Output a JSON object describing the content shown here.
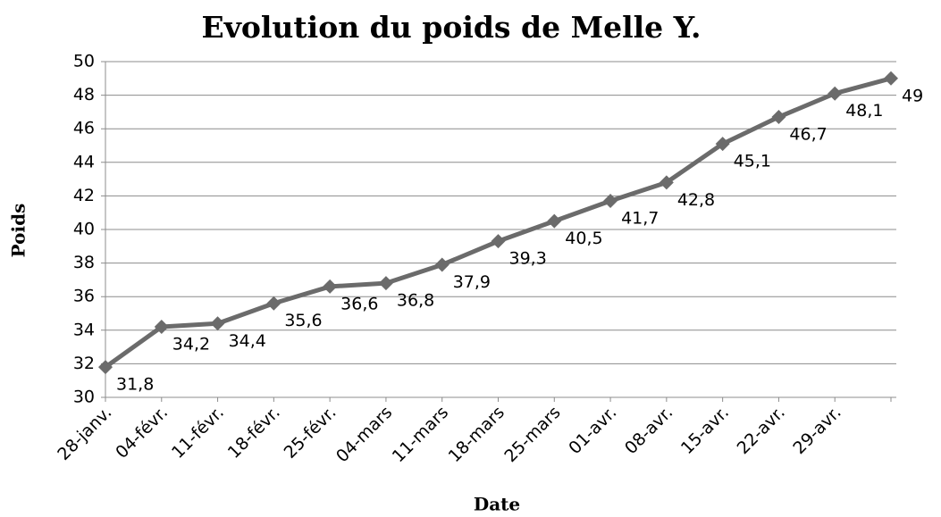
{
  "chart_data": {
    "type": "line",
    "title": "Evolution du poids de Melle Y.",
    "x_label": "Date",
    "y_label": "Poids",
    "categories": [
      "28-janv.",
      "04-févr.",
      "11-févr.",
      "18-févr.",
      "25-févr.",
      "04-mars",
      "11-mars",
      "18-mars",
      "25-mars",
      "01-avr.",
      "08-avr.",
      "15-avr.",
      "22-avr.",
      "29-avr.",
      null
    ],
    "values": [
      31.8,
      34.2,
      34.4,
      35.6,
      36.6,
      36.8,
      37.9,
      39.3,
      40.5,
      41.7,
      42.8,
      45.1,
      46.7,
      48.1,
      49
    ],
    "value_labels": [
      "31,8",
      "34,2",
      "34,4",
      "35,6",
      "36,6",
      "36,8",
      "37,9",
      "39,3",
      "40,5",
      "41,7",
      "42,8",
      "45,1",
      "46,7",
      "48,1",
      "49"
    ],
    "color": "#6b6b6b",
    "ylim": [
      30,
      50
    ],
    "yticks": [
      30,
      32,
      34,
      36,
      38,
      40,
      42,
      44,
      46,
      48,
      50
    ],
    "grid": true
  }
}
